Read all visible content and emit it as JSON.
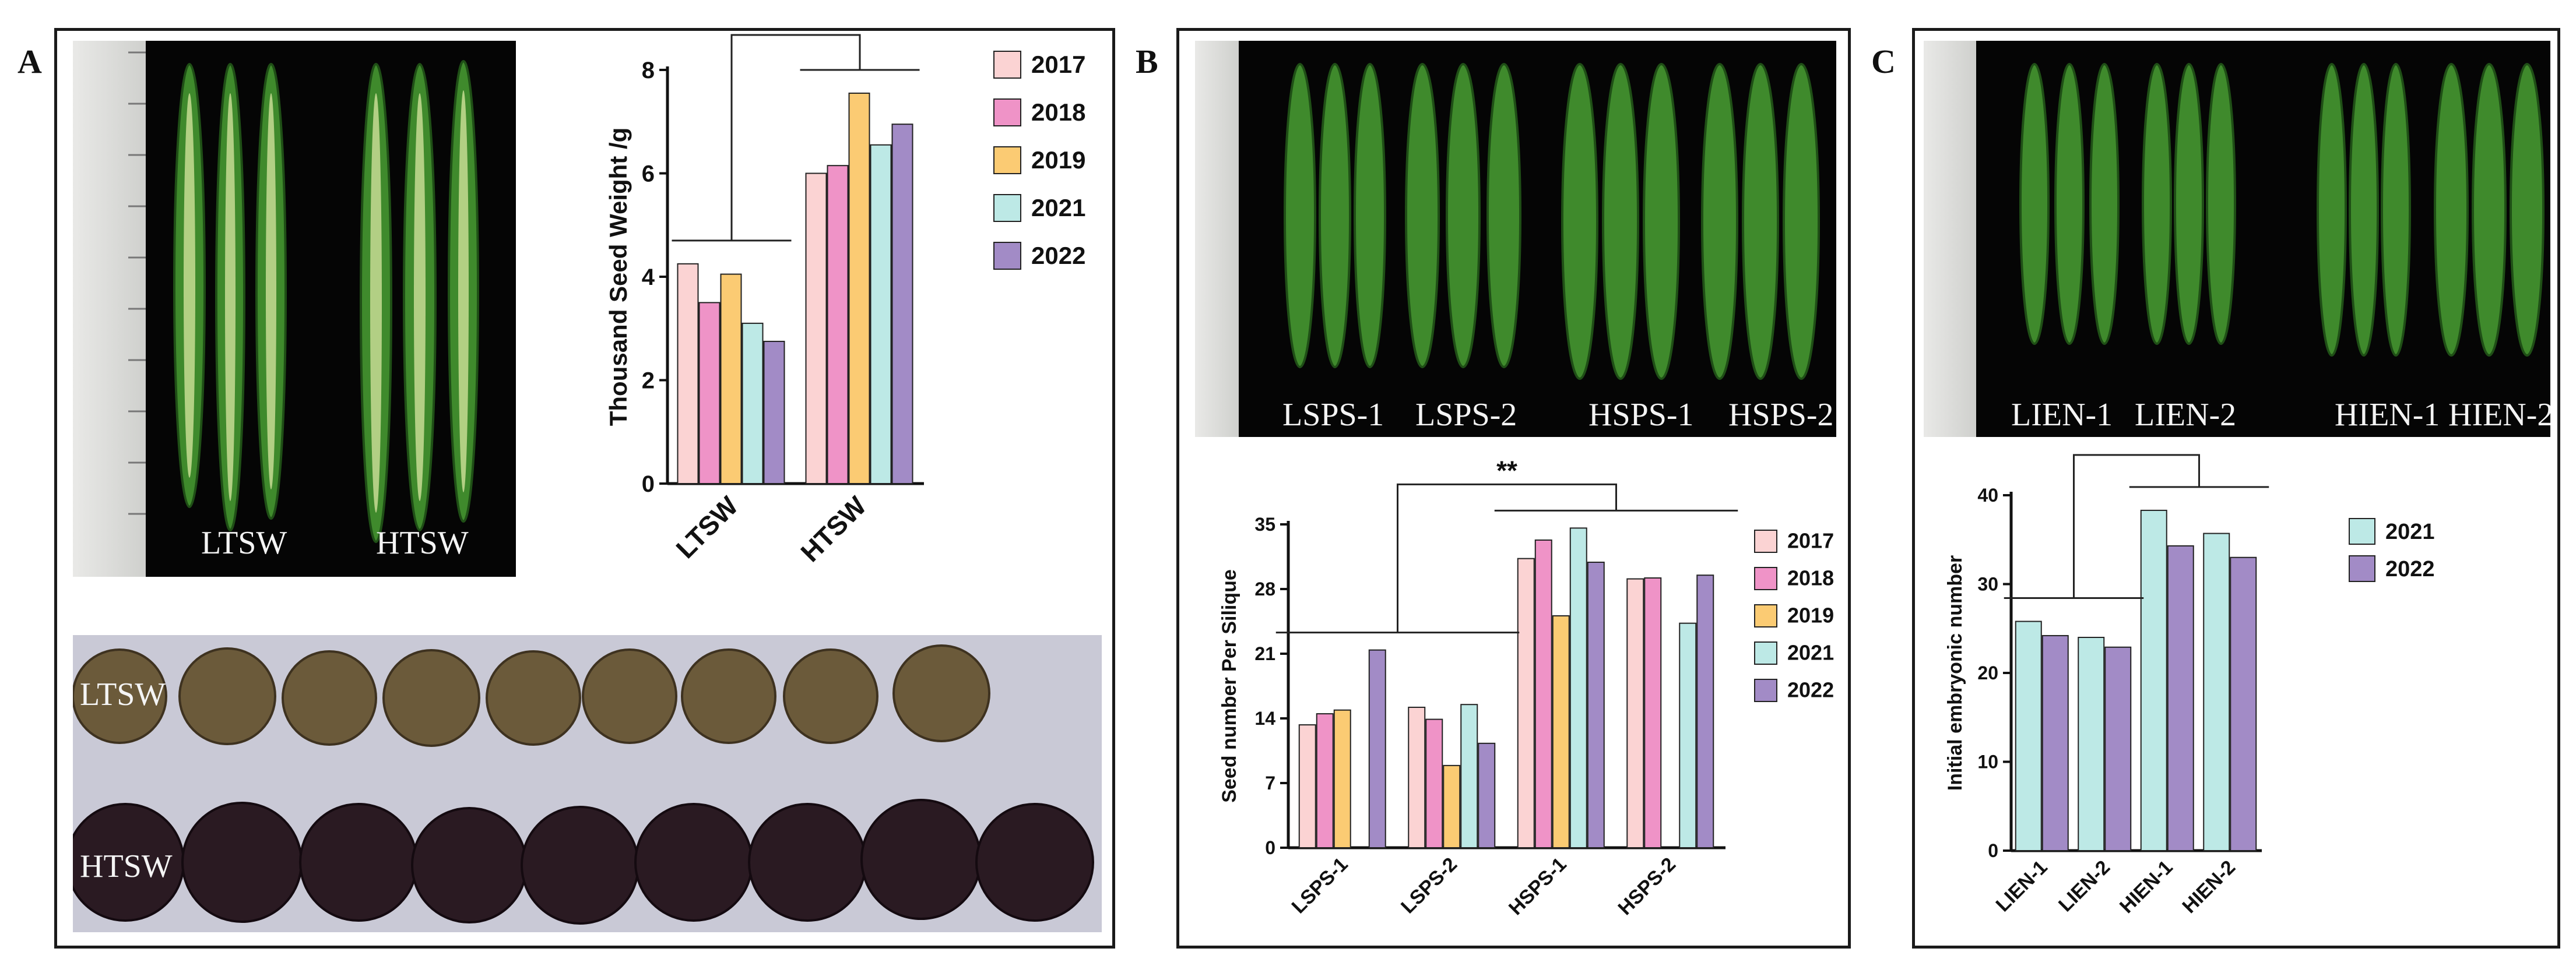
{
  "panels": {
    "a": {
      "letter": "A",
      "photo_labels": [
        "LTSW",
        "HTSW"
      ],
      "seed_labels": [
        "LTSW",
        "HTSW"
      ]
    },
    "b": {
      "letter": "B",
      "photo_labels": [
        "LSPS-1",
        "LSPS-2",
        "HSPS-1",
        "HSPS-2"
      ]
    },
    "c": {
      "letter": "C",
      "photo_labels": [
        "LIEN-1",
        "LIEN-2",
        "HIEN-1",
        "HIEN-2"
      ]
    }
  },
  "chart_data": [
    {
      "type": "bar",
      "title": "",
      "xlabel": "",
      "ylabel": "Thousand Seed Weight /g",
      "categories": [
        "LTSW",
        "HTSW"
      ],
      "ylim": [
        0,
        8
      ],
      "yticks": [
        0,
        2,
        4,
        6,
        8
      ],
      "series": [
        {
          "name": "2017",
          "color": "#fbd3d3",
          "values": [
            4.25,
            6.0
          ]
        },
        {
          "name": "2018",
          "color": "#ef93c7",
          "values": [
            3.5,
            6.15
          ]
        },
        {
          "name": "2019",
          "color": "#fbcb73",
          "values": [
            4.05,
            7.55
          ]
        },
        {
          "name": "2021",
          "color": "#bde9e6",
          "values": [
            3.1,
            6.55
          ]
        },
        {
          "name": "2022",
          "color": "#a28bc6",
          "values": [
            2.75,
            6.95
          ]
        }
      ],
      "legend_position": "right",
      "annotations": [
        "**"
      ]
    },
    {
      "type": "bar",
      "title": "",
      "xlabel": "",
      "ylabel": "Seed number Per Silique",
      "categories": [
        "LSPS-1",
        "LSPS-2",
        "HSPS-1",
        "HSPS-2"
      ],
      "ylim": [
        0,
        35
      ],
      "yticks": [
        0,
        7,
        14,
        21,
        28,
        35
      ],
      "series": [
        {
          "name": "2017",
          "color": "#fbd3d3",
          "values": [
            13.3,
            15.2,
            31.3,
            29.1
          ]
        },
        {
          "name": "2018",
          "color": "#ef93c7",
          "values": [
            14.5,
            13.9,
            33.3,
            29.2
          ]
        },
        {
          "name": "2019",
          "color": "#fbcb73",
          "values": [
            14.9,
            8.9,
            25.1,
            null
          ]
        },
        {
          "name": "2021",
          "color": "#bde9e6",
          "values": [
            null,
            15.5,
            34.6,
            24.3
          ]
        },
        {
          "name": "2022",
          "color": "#a28bc6",
          "values": [
            21.4,
            11.3,
            30.9,
            29.5
          ]
        }
      ],
      "legend_position": "right",
      "annotations": [
        "**"
      ]
    },
    {
      "type": "bar",
      "title": "",
      "xlabel": "",
      "ylabel": "Initial embryonic number",
      "categories": [
        "LIEN-1",
        "LIEN-2",
        "HIEN-1",
        "HIEN-2"
      ],
      "ylim": [
        0,
        40
      ],
      "yticks": [
        0,
        10,
        20,
        30,
        40
      ],
      "series": [
        {
          "name": "2021",
          "color": "#bde9e6",
          "values": [
            25.8,
            24.0,
            38.3,
            35.7
          ]
        },
        {
          "name": "2022",
          "color": "#a28bc6",
          "values": [
            24.2,
            22.9,
            34.3,
            33.0
          ]
        }
      ],
      "legend_position": "right",
      "annotations": [
        "**"
      ]
    }
  ]
}
